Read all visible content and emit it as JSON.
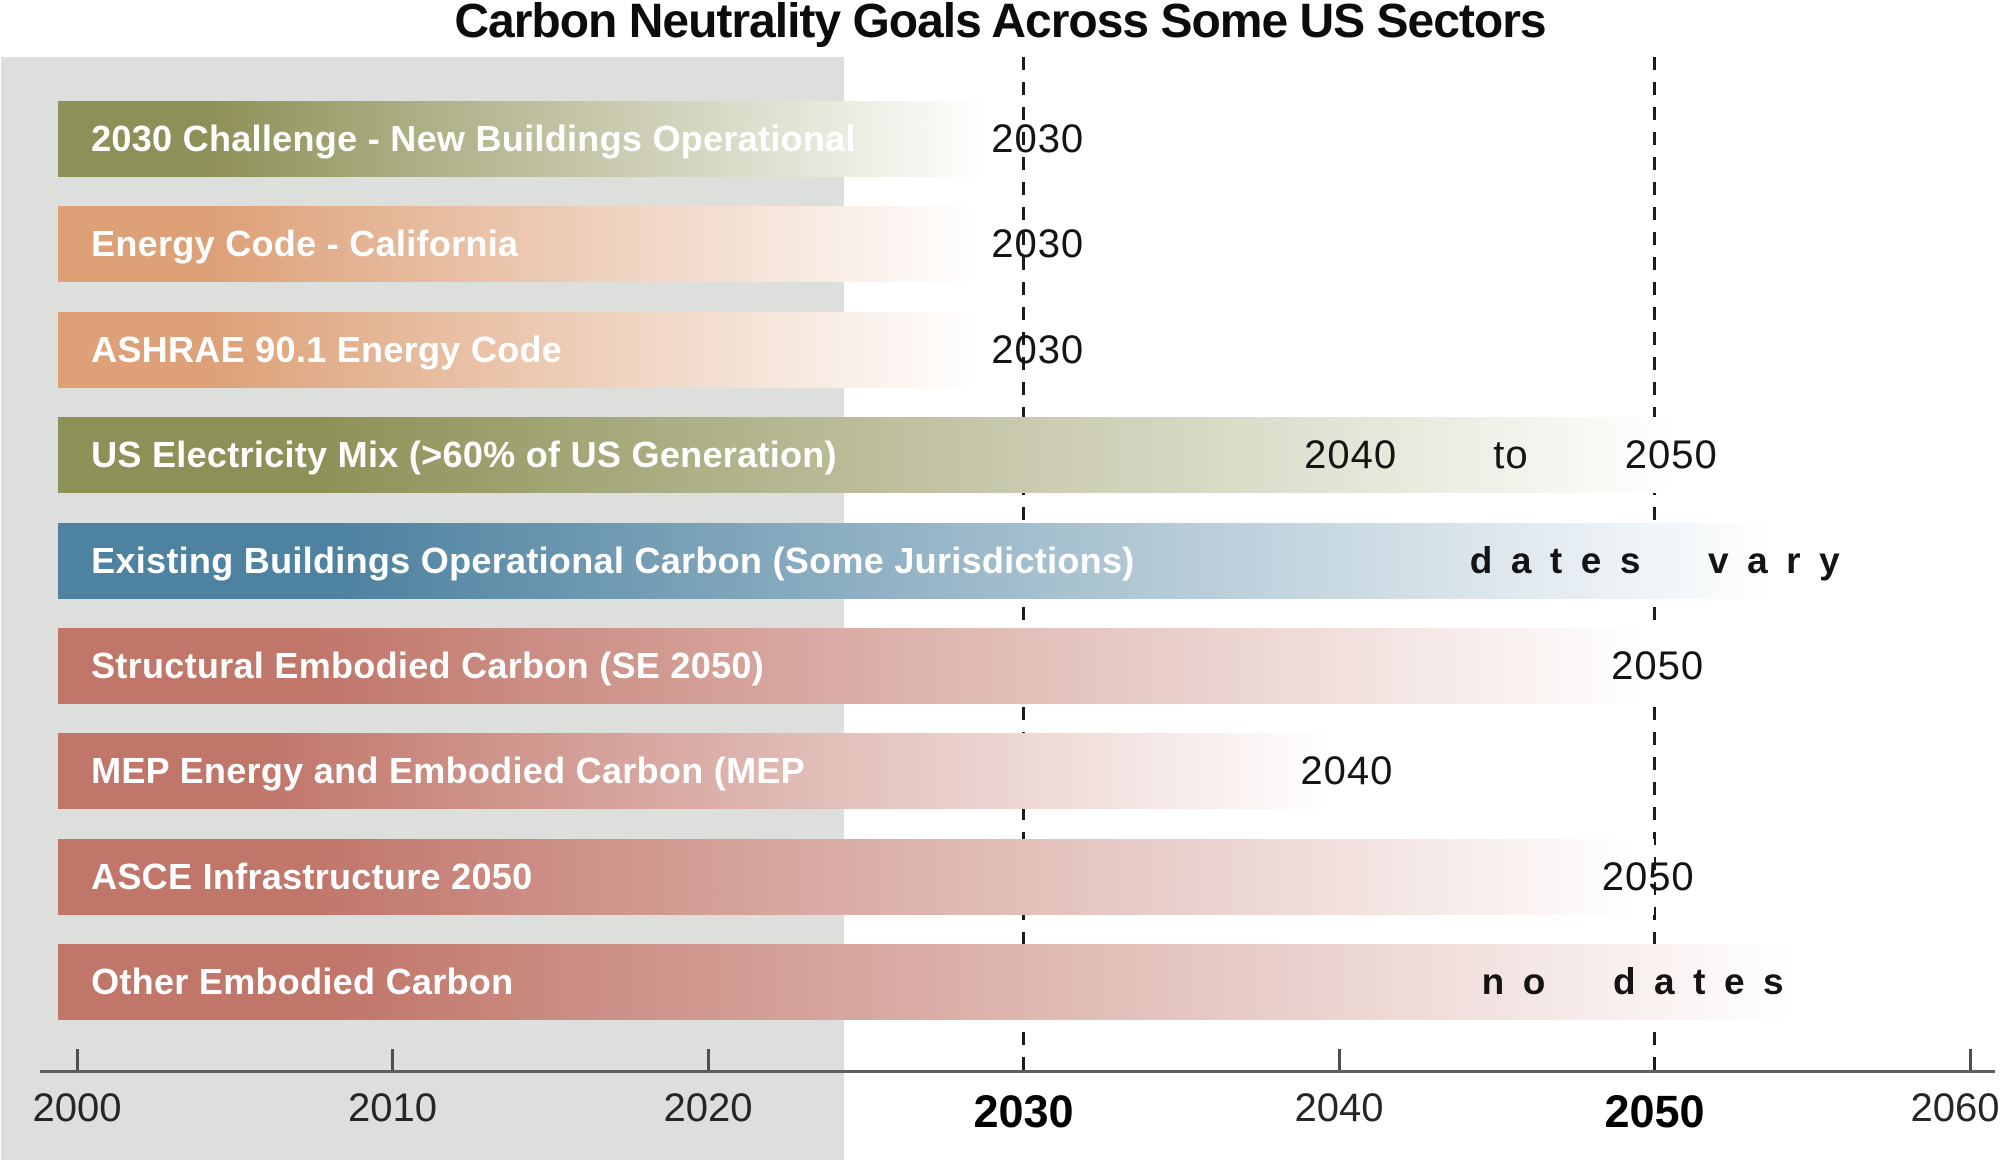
{
  "title": "Carbon Neutrality Goals Across Some US Sectors",
  "colors": {
    "olive": "#8e9157",
    "salmon": "#dda077",
    "blue": "#4d82a0",
    "terracotta": "#c1766a",
    "past_shade": "#dcdfdb",
    "axis": "#5f5f5f",
    "gridline": "#1c1c1c",
    "bar_text": "#ffffff",
    "annotation_text": "#141414"
  },
  "chart_data": {
    "type": "bar",
    "orientation": "horizontal-gantt",
    "title": "Carbon Neutrality Goals Across Some US Sectors",
    "x_axis": {
      "min": 2000,
      "max": 2060,
      "tick_values": [
        2000,
        2010,
        2020,
        2030,
        2040,
        2050,
        2060
      ],
      "tick_labels": [
        "2000",
        "2010",
        "2020",
        "2030",
        "2040",
        "2050",
        "2060"
      ],
      "bold_ticks": [
        2030,
        2050
      ],
      "plain_tick_marks": [
        2000,
        2010,
        2020,
        2040,
        2060
      ],
      "dashed_gridlines": [
        2030,
        2050
      ]
    },
    "shaded_region": {
      "from": 1997.6,
      "to": 2024.3
    },
    "rows": [
      {
        "label": "2030 Challenge - New Buildings Operational",
        "color": "#8e9157",
        "start": 1999.4,
        "end": 2029.1,
        "annotation": {
          "text": "2030",
          "center_year": 2030.45,
          "spaced": false,
          "wide_words": false
        }
      },
      {
        "label": "Energy Code - California",
        "color": "#dda077",
        "start": 1999.4,
        "end": 2028.8,
        "annotation": {
          "text": "2030",
          "center_year": 2030.45,
          "spaced": false,
          "wide_words": false
        }
      },
      {
        "label": "ASHRAE 90.1 Energy Code",
        "color": "#dda077",
        "start": 1999.4,
        "end": 2028.8,
        "annotation": {
          "text": "2030",
          "center_year": 2030.45,
          "spaced": false,
          "wide_words": false
        }
      },
      {
        "label": "US Electricity Mix (>60% of US Generation)",
        "color": "#8e9157",
        "start": 1999.4,
        "end": 2051.1,
        "annotation": {
          "text": "2040 to 2050",
          "center_year": 2045.45,
          "spaced": false,
          "wide_words": true
        }
      },
      {
        "label": "Existing Buildings Operational Carbon (Some Jurisdictions)",
        "color": "#4d82a0",
        "start": 1999.4,
        "end": 2054.3,
        "annotation": {
          "text": "dates vary",
          "center_year": 2050.3,
          "spaced": true,
          "wide_words": false
        }
      },
      {
        "label": "Structural Embodied Carbon (SE 2050)",
        "color": "#c1766a",
        "start": 1999.4,
        "end": 2050.2,
        "annotation": {
          "text": "2050",
          "center_year": 2050.1,
          "spaced": false,
          "wide_words": false
        }
      },
      {
        "label": "MEP Energy and Embodied Carbon (MEP",
        "color": "#c1766a",
        "start": 1999.4,
        "end": 2040.2,
        "annotation": {
          "text": "2040",
          "center_year": 2040.25,
          "spaced": false,
          "wide_words": false
        }
      },
      {
        "label": "ASCE Infrastructure 2050",
        "color": "#c1766a",
        "start": 1999.4,
        "end": 2050.0,
        "annotation": {
          "text": "2050",
          "center_year": 2049.8,
          "spaced": false,
          "wide_words": false
        }
      },
      {
        "label": "Other Embodied Carbon",
        "color": "#c1766a",
        "start": 1999.4,
        "end": 2054.9,
        "annotation": {
          "text": "no dates",
          "center_year": 2049.6,
          "spaced": true,
          "wide_words": false
        }
      }
    ]
  }
}
